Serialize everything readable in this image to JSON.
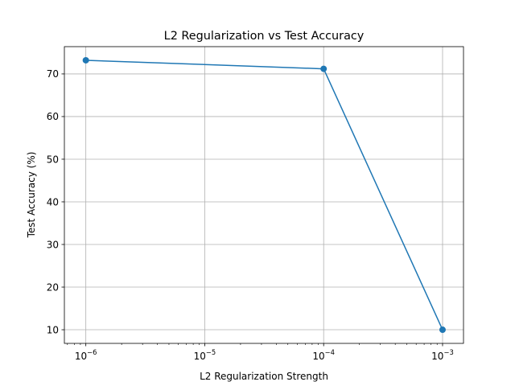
{
  "chart_data": {
    "type": "line",
    "title": "L2 Regularization vs Test Accuracy",
    "xlabel": "L2 Regularization Strength",
    "ylabel": "Test Accuracy (%)",
    "xscale": "log",
    "x": [
      1e-06,
      0.0001,
      0.001
    ],
    "series": [
      {
        "values": [
          73.2,
          71.2,
          10.0
        ]
      }
    ],
    "xlim": [
      6.6e-07,
      0.0015
    ],
    "ylim": [
      6.8,
      76.4
    ],
    "xticks": [
      {
        "value": 1e-06,
        "base": "10",
        "exp": "−6"
      },
      {
        "value": 1e-05,
        "base": "10",
        "exp": "−5"
      },
      {
        "value": 0.0001,
        "base": "10",
        "exp": "−4"
      },
      {
        "value": 0.001,
        "base": "10",
        "exp": "−3"
      }
    ],
    "yticks": [
      10,
      20,
      30,
      40,
      50,
      60,
      70
    ],
    "grid": true,
    "marker": "circle",
    "line_color": "#1f77b4"
  }
}
